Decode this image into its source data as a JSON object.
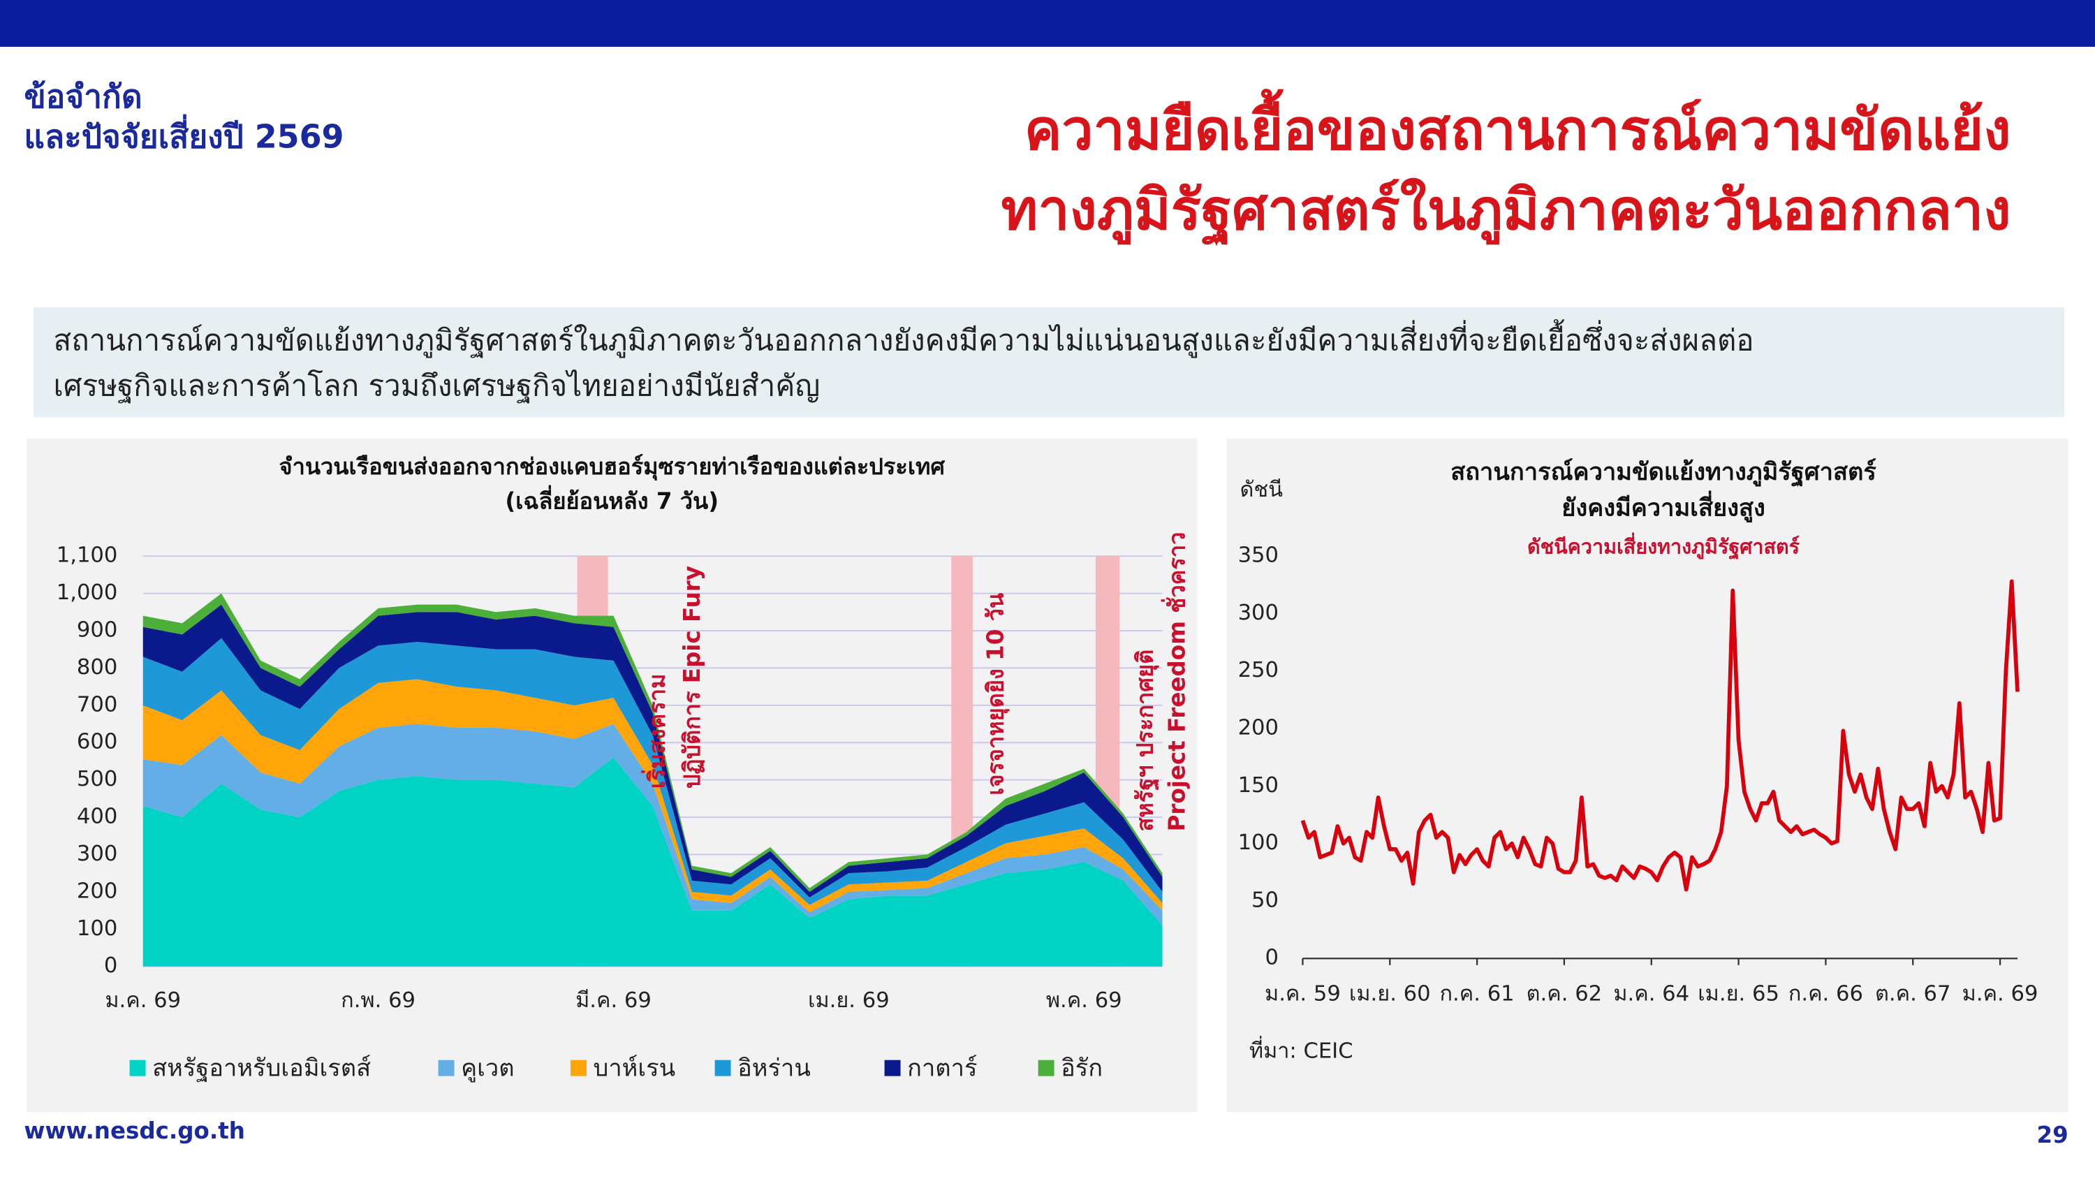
{
  "header": {
    "section_title": [
      "ข้อจำกัด",
      "และปัจจัยเสี่ยงปี 2569"
    ],
    "title": [
      "ความยืดเยื้อของสถานการณ์ความขัดแย้ง",
      "ทางภูมิรัฐศาสตร์ในภูมิภาคตะวันออกกลาง"
    ],
    "description": [
      "สถานการณ์ความขัดแย้งทางภูมิรัฐศาสตร์ในภูมิภาคตะวันออกกลางยังคงมีความไม่แน่นอนสูงและยังมีความเสี่ยงที่จะยืดเยื้อซึ่งจะส่งผลต่อ",
      "เศรษฐกิจและการค้าโลก รวมถึงเศรษฐกิจไทยอย่างมีนัยสำคัญ"
    ]
  },
  "footer": {
    "url": "www.nesdc.go.th",
    "page": 29
  },
  "chart_data": [
    {
      "type": "area",
      "stacked": true,
      "title": [
        "จำนวนเรือขนส่งออกจากช่องแคบฮอร์มุซรายท่าเรือของแต่ละประเทศ",
        "(เฉลี่ยย้อนหลัง 7 วัน)"
      ],
      "categories": [
        "ม.ค. 69",
        null,
        null,
        null,
        null,
        null,
        "ก.พ. 69",
        null,
        null,
        null,
        null,
        null,
        "มี.ค. 69",
        null,
        null,
        null,
        null,
        null,
        "เม.ย. 69",
        null,
        null,
        null,
        null,
        null,
        "พ.ค. 69",
        null,
        null
      ],
      "series": [
        {
          "name": "สหรัฐอาหรับเอมิเรตส์",
          "color": "#00d3c3",
          "values": [
            430,
            400,
            490,
            420,
            400,
            470,
            500,
            510,
            500,
            500,
            490,
            480,
            560,
            430,
            150,
            150,
            220,
            130,
            180,
            190,
            190,
            220,
            250,
            260,
            280,
            230,
            110
          ]
        },
        {
          "name": "คูเวต",
          "color": "#64aee8",
          "values": [
            125,
            140,
            130,
            100,
            90,
            120,
            140,
            140,
            140,
            140,
            140,
            130,
            90,
            60,
            30,
            20,
            20,
            15,
            20,
            15,
            20,
            30,
            40,
            40,
            40,
            30,
            40
          ]
        },
        {
          "name": "บาห์เรน",
          "color": "#ffa50a",
          "values": [
            145,
            120,
            120,
            100,
            90,
            100,
            120,
            120,
            110,
            100,
            90,
            90,
            70,
            50,
            20,
            20,
            20,
            20,
            20,
            20,
            20,
            30,
            40,
            50,
            50,
            30,
            20
          ]
        },
        {
          "name": "อิหร่าน",
          "color": "#1e98d6",
          "values": [
            130,
            130,
            140,
            120,
            110,
            110,
            100,
            100,
            110,
            110,
            130,
            130,
            100,
            80,
            30,
            30,
            30,
            20,
            30,
            30,
            35,
            40,
            50,
            60,
            70,
            50,
            30
          ]
        },
        {
          "name": "กาตาร์",
          "color": "#0a1a8c",
          "values": [
            80,
            100,
            90,
            60,
            60,
            50,
            80,
            80,
            90,
            80,
            90,
            90,
            90,
            60,
            30,
            20,
            20,
            15,
            20,
            25,
            25,
            30,
            50,
            60,
            80,
            60,
            40
          ]
        },
        {
          "name": "อิรัก",
          "color": "#4caf3a",
          "values": [
            30,
            30,
            30,
            20,
            20,
            20,
            20,
            20,
            20,
            20,
            20,
            20,
            30,
            20,
            10,
            10,
            10,
            10,
            10,
            10,
            10,
            10,
            20,
            20,
            10,
            10,
            10
          ]
        }
      ],
      "ylim": [
        0,
        1100
      ],
      "yticks": [
        0,
        100,
        200,
        300,
        400,
        500,
        600,
        700,
        800,
        900,
        {
          "value": 1000,
          "label": "1,000"
        },
        {
          "value": 1100,
          "label": "1,100"
        }
      ],
      "grid": true,
      "annotations": [
        [
          "เริ่มสงคราม",
          "ปฏิบัติการ Epic Fury"
        ],
        [
          "เจรจาหยุดยิง 10 วัน"
        ],
        [
          "สหรัฐฯ ประกาศยุติ",
          "Project Freedom ชั่วคราว"
        ]
      ]
    },
    {
      "type": "line",
      "title": [
        "สถานการณ์ความขัดแย้งทางภูมิรัฐศาสตร์",
        "ยังคงมีความเสี่ยงสูง"
      ],
      "subtitle": "ดัชนีความเสี่ยงทางภูมิรัฐศาสตร์",
      "y_label": "ดัชนี",
      "source": "ที่มา: CEIC",
      "categories": [
        "ม.ค. 59",
        null,
        null,
        null,
        null,
        null,
        null,
        null,
        null,
        null,
        null,
        null,
        null,
        null,
        null,
        "เม.ย. 60",
        null,
        null,
        null,
        null,
        null,
        null,
        null,
        null,
        null,
        null,
        null,
        null,
        null,
        null,
        "ก.ค. 61",
        null,
        null,
        null,
        null,
        null,
        null,
        null,
        null,
        null,
        null,
        null,
        null,
        null,
        null,
        "ต.ค. 62",
        null,
        null,
        null,
        null,
        null,
        null,
        null,
        null,
        null,
        null,
        null,
        null,
        null,
        null,
        "ม.ค. 64",
        null,
        null,
        null,
        null,
        null,
        null,
        null,
        null,
        null,
        null,
        null,
        null,
        null,
        null,
        "เม.ย. 65",
        null,
        null,
        null,
        null,
        null,
        null,
        null,
        null,
        null,
        null,
        null,
        null,
        null,
        null,
        "ก.ค. 66",
        null,
        null,
        null,
        null,
        null,
        null,
        null,
        null,
        null,
        null,
        null,
        null,
        null,
        null,
        "ต.ค. 67",
        null,
        null,
        null,
        null,
        null,
        null,
        null,
        null,
        null,
        null,
        null,
        null,
        null,
        null,
        "ม.ค. 69",
        null,
        null,
        null
      ],
      "values": [
        120,
        105,
        110,
        88,
        90,
        92,
        115,
        100,
        105,
        88,
        85,
        110,
        105,
        140,
        115,
        95,
        95,
        85,
        92,
        65,
        110,
        120,
        125,
        105,
        110,
        105,
        75,
        90,
        82,
        90,
        95,
        85,
        80,
        105,
        110,
        95,
        100,
        88,
        105,
        95,
        82,
        80,
        105,
        100,
        78,
        75,
        75,
        85,
        140,
        80,
        82,
        72,
        70,
        72,
        68,
        80,
        75,
        70,
        80,
        78,
        75,
        68,
        80,
        88,
        92,
        88,
        60,
        88,
        80,
        82,
        85,
        95,
        110,
        150,
        320,
        190,
        145,
        130,
        120,
        135,
        135,
        145,
        120,
        115,
        110,
        115,
        108,
        110,
        112,
        108,
        105,
        100,
        102,
        198,
        160,
        145,
        160,
        140,
        130,
        165,
        130,
        110,
        95,
        140,
        130,
        130,
        135,
        115,
        170,
        145,
        150,
        140,
        160,
        222,
        140,
        145,
        130,
        110,
        170,
        120,
        122,
        250,
        328,
        232
      ],
      "color": "#d9000d",
      "ylim": [
        0,
        350
      ],
      "yticks": [
        0,
        50,
        100,
        150,
        200,
        250,
        300,
        350
      ],
      "grid": false
    }
  ]
}
